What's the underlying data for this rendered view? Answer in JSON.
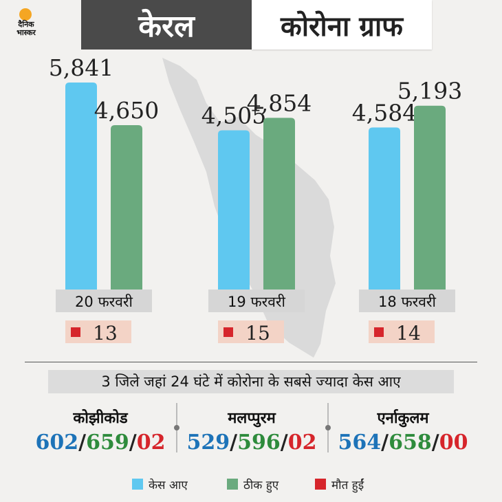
{
  "logo": {
    "line1": "दैनिक",
    "line2": "भास्कर"
  },
  "header": {
    "state": "केरल",
    "title": "कोरोना ग्राफ"
  },
  "colors": {
    "cases": "#5fc8f0",
    "recovered": "#6aaa7e",
    "deaths": "#d6252b",
    "date_box": "#d6d6d6",
    "death_box": "#f3d3c6"
  },
  "chart_data": {
    "type": "bar",
    "categories": [
      "20 फरवरी",
      "19 फरवरी",
      "18 फरवरी"
    ],
    "series": [
      {
        "name": "केस आए",
        "values": [
          5841,
          4505,
          4584
        ],
        "labels": [
          "5,841",
          "4,505",
          "4,584"
        ]
      },
      {
        "name": "ठीक हुए",
        "values": [
          4650,
          4854,
          5193
        ],
        "labels": [
          "4,650",
          "4,854",
          "5,193"
        ]
      }
    ],
    "deaths": [
      13,
      15,
      14
    ],
    "legend": [
      "केस आए",
      "ठीक हुए",
      "मौत हुईं"
    ]
  },
  "districts": {
    "title": "3 जिले जहां 24 घंटे में कोरोना के सबसे ज्यादा केस आए",
    "items": [
      {
        "name": "कोझीकोड",
        "cases": "602",
        "recovered": "659",
        "deaths": "02"
      },
      {
        "name": "मलप्पुरम",
        "cases": "529",
        "recovered": "596",
        "deaths": "02"
      },
      {
        "name": "एर्नाकुलम",
        "cases": "564",
        "recovered": "658",
        "deaths": "00"
      }
    ]
  },
  "legend": {
    "cases": "केस आए",
    "recovered": "ठीक हुए",
    "deaths": "मौत हुईं"
  }
}
